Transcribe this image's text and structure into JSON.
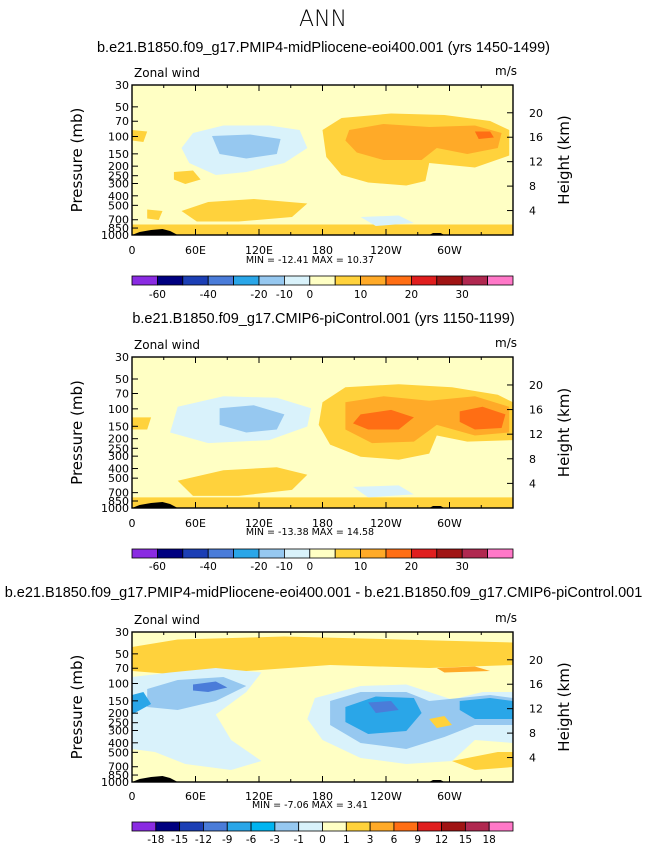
{
  "figure_title": "ANN",
  "chart_data": [
    {
      "type": "heatmap",
      "title": "b.e21.B1850.f09_g17.PMIP4-midPliocene-eoi400.001 (yrs 1450-1499)",
      "left_label": "Zonal wind",
      "right_label": "m/s",
      "ylabel": "Pressure (mb)",
      "y2label": "Height (km)",
      "x_ticks": [
        "0",
        "60E",
        "120E",
        "180",
        "120W",
        "60W"
      ],
      "y_ticks": [
        "30",
        "50",
        "70",
        "100",
        "150",
        "200",
        "250",
        "300",
        "400",
        "500",
        "700",
        "850",
        "1000"
      ],
      "y2_ticks": [
        "20",
        "16",
        "12",
        "8",
        "4"
      ],
      "stats": "MIN = -12.41   MAX = 10.37",
      "min": -12.41,
      "max": 10.37,
      "colorbar_levels": [
        -60,
        -50,
        -40,
        -30,
        -20,
        -10,
        0,
        10,
        20,
        30
      ],
      "colorbar_labels": [
        "-60",
        "-40",
        "-20",
        "-10",
        "0",
        "10",
        "20",
        "30"
      ],
      "colorbar_colors": [
        "#8a2be2",
        "#000080",
        "#1c3fb5",
        "#4a7cd9",
        "#2aa6e8",
        "#96c8f0",
        "#d9f2fb",
        "#ffffc4",
        "#ffd23c",
        "#ffaa28",
        "#ff6e14",
        "#e01e1e",
        "#a01414",
        "#b02850",
        "#ff78c8"
      ]
    },
    {
      "type": "heatmap",
      "title": "b.e21.B1850.f09_g17.CMIP6-piControl.001 (yrs 1150-1199)",
      "left_label": "Zonal wind",
      "right_label": "m/s",
      "ylabel": "Pressure (mb)",
      "y2label": "Height (km)",
      "x_ticks": [
        "0",
        "60E",
        "120E",
        "180",
        "120W",
        "60W"
      ],
      "y_ticks": [
        "30",
        "50",
        "70",
        "100",
        "150",
        "200",
        "250",
        "300",
        "400",
        "500",
        "700",
        "850",
        "1000"
      ],
      "y2_ticks": [
        "20",
        "16",
        "12",
        "8",
        "4"
      ],
      "stats": "MIN = -13.38   MAX = 14.58",
      "min": -13.38,
      "max": 14.58,
      "colorbar_levels": [
        -60,
        -50,
        -40,
        -30,
        -20,
        -10,
        0,
        10,
        20,
        30
      ],
      "colorbar_labels": [
        "-60",
        "-40",
        "-20",
        "-10",
        "0",
        "10",
        "20",
        "30"
      ],
      "colorbar_colors": [
        "#8a2be2",
        "#000080",
        "#1c3fb5",
        "#4a7cd9",
        "#2aa6e8",
        "#96c8f0",
        "#d9f2fb",
        "#ffffc4",
        "#ffd23c",
        "#ffaa28",
        "#ff6e14",
        "#e01e1e",
        "#a01414",
        "#b02850",
        "#ff78c8"
      ]
    },
    {
      "type": "heatmap",
      "title": "b.e21.B1850.f09_g17.PMIP4-midPliocene-eoi400.001 - b.e21.B1850.f09_g17.CMIP6-piControl.001",
      "left_label": "Zonal wind",
      "right_label": "m/s",
      "ylabel": "Pressure (mb)",
      "y2label": "Height (km)",
      "x_ticks": [
        "0",
        "60E",
        "120E",
        "180",
        "120W",
        "60W"
      ],
      "y_ticks": [
        "30",
        "50",
        "70",
        "100",
        "150",
        "200",
        "250",
        "300",
        "400",
        "500",
        "700",
        "850",
        "1000"
      ],
      "y2_ticks": [
        "20",
        "16",
        "12",
        "8",
        "4"
      ],
      "stats": "MIN = -7.06   MAX = 3.41",
      "min": -7.06,
      "max": 3.41,
      "colorbar_levels": [
        -18,
        -15,
        -12,
        -9,
        -6,
        -3,
        -1,
        0,
        1,
        3,
        6,
        9,
        12,
        15,
        18
      ],
      "colorbar_labels": [
        "-18",
        "-15",
        "-12",
        "-9",
        "-6",
        "-3",
        "-1",
        "0",
        "1",
        "3",
        "6",
        "9",
        "12",
        "15",
        "18"
      ],
      "colorbar_colors": [
        "#8a2be2",
        "#000080",
        "#1c3fb5",
        "#4a7cd9",
        "#2aa6e8",
        "#00b4f0",
        "#96c8f0",
        "#d9f2fb",
        "#ffffc4",
        "#ffd23c",
        "#ffaa28",
        "#ff6e14",
        "#e01e1e",
        "#a01414",
        "#b02850",
        "#ff78c8"
      ]
    }
  ],
  "colors": {
    "pale_yellow": "#ffffc4",
    "yellow": "#ffd23c",
    "orange": "#ffaa28",
    "dark_orange": "#ff6e14",
    "red": "#e01e1e",
    "light_blue": "#d9f2fb",
    "medium_blue": "#96c8f0",
    "blue": "#2aa6e8",
    "deep_blue": "#4a7cd9"
  }
}
